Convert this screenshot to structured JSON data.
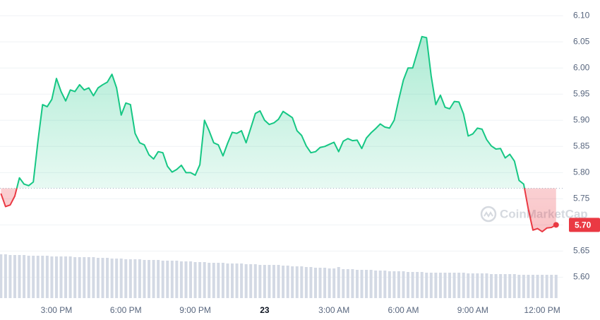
{
  "chart_data": {
    "type": "line",
    "x": [
      12.6,
      12.8,
      13.0,
      13.2,
      13.4,
      13.6,
      13.8,
      14.0,
      14.2,
      14.4,
      14.6,
      14.8,
      15.0,
      15.2,
      15.4,
      15.6,
      15.8,
      16.0,
      16.2,
      16.4,
      16.6,
      16.8,
      17.0,
      17.2,
      17.4,
      17.6,
      17.8,
      18.0,
      18.2,
      18.4,
      18.6,
      18.8,
      19.0,
      19.2,
      19.4,
      19.6,
      19.8,
      20.0,
      20.2,
      20.4,
      20.6,
      20.8,
      21.0,
      21.2,
      21.4,
      21.6,
      21.8,
      22.0,
      22.2,
      22.4,
      22.6,
      22.8,
      23.0,
      23.2,
      23.4,
      23.6,
      23.8,
      24.0,
      24.2,
      24.4,
      24.6,
      24.8,
      25.0,
      25.2,
      25.4,
      25.6,
      25.8,
      26.0,
      26.2,
      26.4,
      26.6,
      26.8,
      27.0,
      27.2,
      27.4,
      27.6,
      27.8,
      28.0,
      28.2,
      28.4,
      28.6,
      28.8,
      29.0,
      29.2,
      29.4,
      29.6,
      29.8,
      30.0,
      30.2,
      30.4,
      30.6,
      30.8,
      31.0,
      31.2,
      31.4,
      31.6,
      31.8,
      32.0,
      32.2,
      32.4,
      32.6,
      32.8,
      33.0,
      33.2,
      33.4,
      33.6,
      33.8,
      34.0,
      34.2,
      34.4,
      34.6,
      34.8,
      35.0,
      35.2,
      35.4,
      35.6,
      35.8,
      36.0,
      36.2,
      36.4,
      36.6
    ],
    "values": [
      5.76,
      5.735,
      5.738,
      5.755,
      5.79,
      5.778,
      5.775,
      5.782,
      5.86,
      5.93,
      5.926,
      5.94,
      5.98,
      5.955,
      5.937,
      5.958,
      5.955,
      5.968,
      5.958,
      5.962,
      5.947,
      5.962,
      5.968,
      5.973,
      5.988,
      5.962,
      5.91,
      5.933,
      5.93,
      5.875,
      5.857,
      5.853,
      5.834,
      5.826,
      5.84,
      5.838,
      5.812,
      5.801,
      5.806,
      5.814,
      5.8,
      5.8,
      5.795,
      5.815,
      5.9,
      5.88,
      5.857,
      5.853,
      5.832,
      5.856,
      5.877,
      5.875,
      5.88,
      5.857,
      5.885,
      5.913,
      5.918,
      5.9,
      5.892,
      5.895,
      5.902,
      5.917,
      5.911,
      5.905,
      5.88,
      5.871,
      5.851,
      5.838,
      5.84,
      5.848,
      5.85,
      5.854,
      5.858,
      5.84,
      5.86,
      5.865,
      5.861,
      5.862,
      5.846,
      5.866,
      5.876,
      5.884,
      5.893,
      5.887,
      5.885,
      5.9,
      5.94,
      5.977,
      6.0,
      6.0,
      6.03,
      6.06,
      6.058,
      5.985,
      5.93,
      5.948,
      5.925,
      5.922,
      5.936,
      5.935,
      5.912,
      5.87,
      5.874,
      5.885,
      5.883,
      5.863,
      5.851,
      5.845,
      5.846,
      5.828,
      5.835,
      5.822,
      5.785,
      5.778,
      5.73,
      5.69,
      5.693,
      5.687,
      5.694,
      5.695,
      5.7
    ],
    "volume": [
      62,
      62,
      61,
      61,
      61,
      61,
      60,
      60,
      60,
      60,
      60,
      59,
      59,
      59,
      59,
      59,
      58,
      58,
      58,
      58,
      58,
      57,
      57,
      57,
      56,
      56,
      56,
      55,
      55,
      55,
      55,
      54,
      54,
      54,
      54,
      53,
      53,
      53,
      53,
      52,
      52,
      52,
      51,
      51,
      51,
      50,
      50,
      50,
      50,
      49,
      49,
      49,
      49,
      48,
      48,
      48,
      47,
      47,
      47,
      47,
      47,
      46,
      46,
      45,
      45,
      45,
      44,
      44,
      43,
      43,
      43,
      42,
      42,
      44,
      41,
      41,
      41,
      40,
      40,
      40,
      40,
      39,
      39,
      39,
      38,
      38,
      38,
      38,
      37,
      37,
      37,
      37,
      36,
      36,
      36,
      36,
      36,
      36,
      36,
      36,
      36,
      35,
      35,
      35,
      35,
      35,
      34,
      34,
      34,
      34,
      34,
      34,
      33,
      33,
      33,
      33,
      33,
      33,
      33,
      33,
      33
    ],
    "volume_lim": [
      0,
      100
    ],
    "baseline": 5.77,
    "up_color": "#16c784",
    "down_color": "#ea3943",
    "volume_color": "#d3d9e4",
    "xlim": [
      12.56,
      36.9
    ],
    "xticks": [
      {
        "value": 15,
        "label": "3:00 PM"
      },
      {
        "value": 18,
        "label": "6:00 PM"
      },
      {
        "value": 21,
        "label": "9:00 PM"
      },
      {
        "value": 24,
        "label": "23"
      },
      {
        "value": 27,
        "label": "3:00 AM"
      },
      {
        "value": 30,
        "label": "6:00 AM"
      },
      {
        "value": 33,
        "label": "9:00 AM"
      },
      {
        "value": 36,
        "label": "12:00 PM"
      }
    ],
    "ylim": [
      5.56,
      6.13
    ],
    "yticks": [
      {
        "value": 5.6,
        "label": "5.60"
      },
      5.65,
      {
        "value": 5.7,
        "label": "5.70"
      },
      5.75,
      {
        "value": 5.8,
        "label": "5.80"
      },
      5.85,
      {
        "value": 5.9,
        "label": "5.90"
      },
      5.95,
      {
        "value": 6.0,
        "label": "6.00"
      },
      6.05,
      {
        "value": 6.1,
        "label": "6.10"
      }
    ],
    "grid": true,
    "current_label": "5.70",
    "watermark": "CoinMarketCap"
  }
}
